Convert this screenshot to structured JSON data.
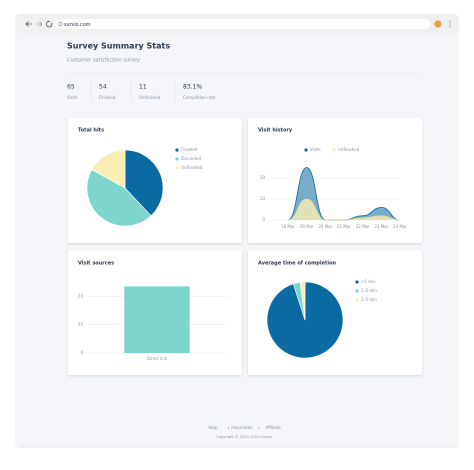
{
  "browser": {
    "url": "survio.com"
  },
  "header": {
    "title": "Survey Summary Stats",
    "subtitle": "Customer satisfaction survey"
  },
  "stats": [
    {
      "value": "65",
      "label": "Visits"
    },
    {
      "value": "54",
      "label": "Finished"
    },
    {
      "value": "11",
      "label": "Unfinished"
    },
    {
      "value": "83.1%",
      "label": "Completion rate"
    }
  ],
  "chart_data": [
    {
      "type": "pie",
      "title": "Total hits",
      "categories": [
        "Finished",
        "Discarded",
        "Unfinished"
      ],
      "values": [
        38,
        45,
        17
      ],
      "colors": [
        "#0b6aa2",
        "#7dd5cb",
        "#fbeeb2"
      ]
    },
    {
      "type": "area",
      "title": "Visit history",
      "x": [
        "18 Mar",
        "19 Mar",
        "20 Mar",
        "21 Mar",
        "22 Mar",
        "23 Mar",
        "24 Mar"
      ],
      "series": [
        {
          "name": "Visits",
          "color": "#0b6aa2",
          "values": [
            0,
            25,
            0,
            0,
            2,
            6,
            0
          ]
        },
        {
          "name": "Unfinished",
          "color": "#fbeeb2",
          "values": [
            0,
            10,
            0,
            0,
            1,
            2,
            0
          ]
        }
      ],
      "ylim": [
        0,
        30
      ],
      "yticks": [
        0,
        10,
        20
      ],
      "grid": true
    },
    {
      "type": "bar",
      "title": "Visit sources",
      "categories": [
        "Direct link"
      ],
      "values": [
        23.5
      ],
      "color": "#7dd5cb",
      "ylim": [
        0,
        24
      ],
      "yticks": [
        0,
        10,
        20
      ],
      "grid": true
    },
    {
      "type": "pie",
      "title": "Average time of completion",
      "categories": [
        "<1 min",
        "1–2 min",
        "2–5 min"
      ],
      "values": [
        95,
        3,
        2
      ],
      "colors": [
        "#0b6aa2",
        "#7dd5cb",
        "#fbeeb2"
      ]
    }
  ],
  "footer": {
    "links": [
      "Help",
      "Inspiration",
      "Affiliate"
    ],
    "copyright": "Copyright © 2013-2021 Survio"
  }
}
